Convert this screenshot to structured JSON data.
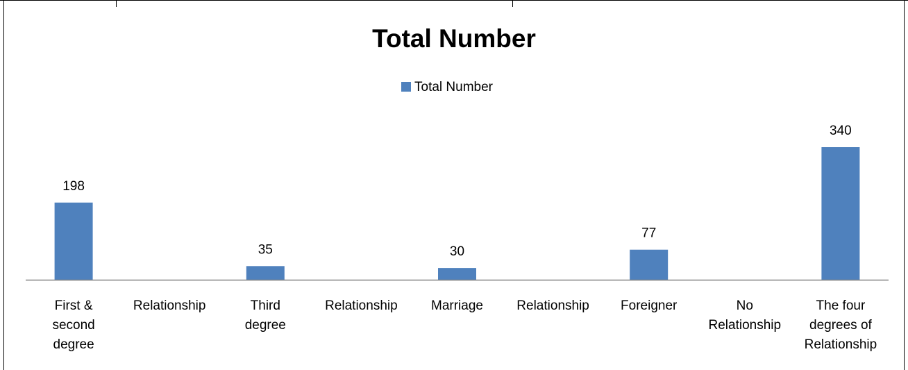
{
  "chart_data": {
    "type": "bar",
    "title": "Total Number",
    "legend": {
      "position": "top",
      "entries": [
        "Total Number"
      ]
    },
    "categories": [
      [
        "First &",
        "second",
        "degree"
      ],
      [
        "Relationship"
      ],
      [
        "Third",
        "degree"
      ],
      [
        "Relationship"
      ],
      [
        "Marriage"
      ],
      [
        "Relationship"
      ],
      [
        "Foreigner"
      ],
      [
        "No",
        "Relationship"
      ],
      [
        "The four",
        "degrees of",
        "Relationship"
      ]
    ],
    "series": [
      {
        "name": "Total Number",
        "values": [
          198,
          null,
          35,
          null,
          30,
          null,
          77,
          null,
          340
        ]
      }
    ],
    "data_labels": [
      "198",
      "",
      "35",
      "",
      "30",
      "",
      "77",
      "",
      "340"
    ],
    "ylim": [
      0,
      340
    ],
    "grid": false,
    "colors": {
      "bar": "#4F81BD",
      "axis": "#868686",
      "frame": "#000000"
    }
  }
}
